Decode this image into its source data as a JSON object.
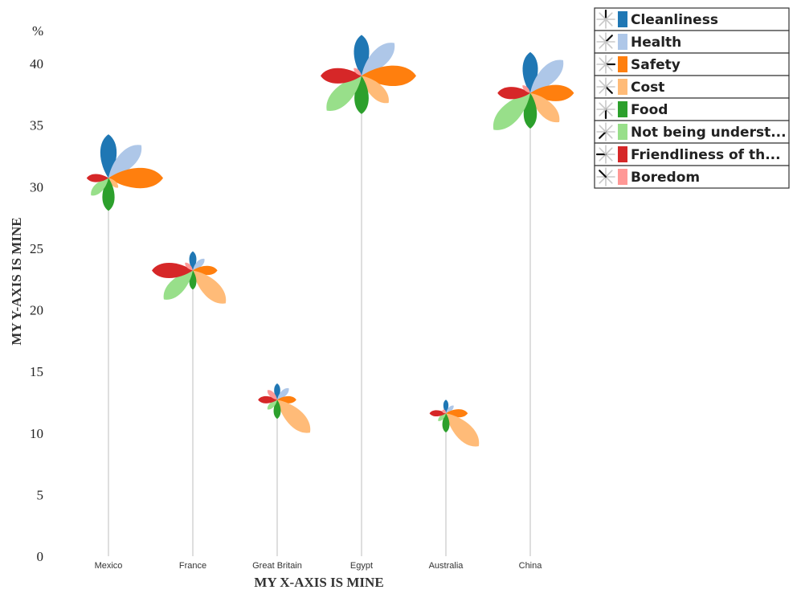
{
  "chart_data": {
    "type": "flower-scatter",
    "xlabel": "MY X-AXIS IS MINE",
    "ylabel": "MY Y-AXIS IS MINE",
    "y_unit": "%",
    "ylim": [
      0,
      40
    ],
    "yticks": [
      0,
      5,
      10,
      15,
      20,
      25,
      30,
      35,
      40
    ],
    "categories": [
      "Mexico",
      "France",
      "Great Britain",
      "Egypt",
      "Australia",
      "China"
    ],
    "values": [
      30.7,
      23.2,
      12.7,
      39.0,
      11.6,
      37.6
    ],
    "series": [
      {
        "name": "Cleanliness",
        "color": "#1f77b4",
        "values": [
          0.8,
          0.35,
          0.3,
          0.75,
          0.25,
          0.75
        ]
      },
      {
        "name": "Health",
        "color": "#aec7e8",
        "values": [
          0.85,
          0.3,
          0.3,
          0.85,
          0.2,
          0.85
        ]
      },
      {
        "name": "Safety",
        "color": "#ff7f0e",
        "values": [
          1.0,
          0.45,
          0.35,
          1.0,
          0.4,
          0.8
        ]
      },
      {
        "name": "Cost",
        "color": "#ffbb78",
        "values": [
          0.25,
          0.85,
          0.85,
          0.7,
          0.85,
          0.75
        ]
      },
      {
        "name": "Food",
        "color": "#2ca02c",
        "values": [
          0.6,
          0.35,
          0.35,
          0.7,
          0.35,
          0.65
        ]
      },
      {
        "name": "Not being underst...",
        "color": "#98df8a",
        "values": [
          0.45,
          0.75,
          0.25,
          0.9,
          0.2,
          0.95
        ]
      },
      {
        "name": "Friendliness of th...",
        "color": "#d62728",
        "values": [
          0.4,
          0.75,
          0.35,
          0.75,
          0.3,
          0.6
        ]
      },
      {
        "name": "Boredom",
        "color": "#ff9896",
        "values": [
          0.0,
          0.2,
          0.25,
          0.2,
          0.05,
          0.2
        ]
      }
    ],
    "grid": false,
    "legend": "top-right"
  }
}
